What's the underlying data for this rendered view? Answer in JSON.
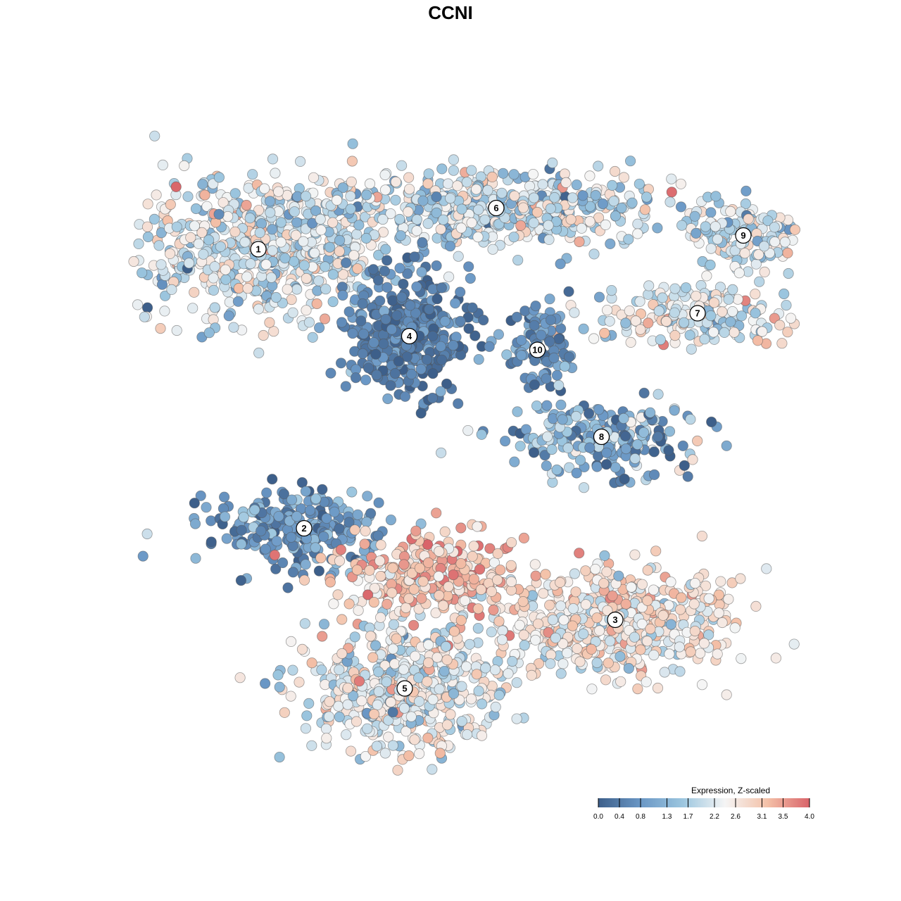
{
  "chart_data": {
    "type": "scatter",
    "title": "CCNI",
    "xlabel": "",
    "ylabel": "",
    "grid": false,
    "color_scale": {
      "title": "Expression, Z-scaled",
      "min": 0.0,
      "max": 4.0,
      "ticks": [
        "0.0",
        "0.4",
        "0.8",
        "1.3",
        "1.7",
        "2.2",
        "2.6",
        "3.1",
        "3.5",
        "4.0"
      ],
      "colors": [
        "#3d5f8a",
        "#6a97c5",
        "#9cc6df",
        "#f5f5f5",
        "#f4c1a8",
        "#d9646a"
      ],
      "placement": "bottom-right"
    },
    "clusters": [
      {
        "label": "1",
        "x": -4.2,
        "y": 4.4,
        "sx": 2.0,
        "sy": 1.1,
        "n": 620,
        "mean": 2.1,
        "sd": 0.55
      },
      {
        "label": "6",
        "x": 1.0,
        "y": 5.3,
        "sx": 2.6,
        "sy": 0.55,
        "n": 520,
        "mean": 2.0,
        "sd": 0.6
      },
      {
        "label": "9",
        "x": 6.4,
        "y": 4.7,
        "sx": 0.9,
        "sy": 0.45,
        "n": 130,
        "mean": 2.0,
        "sd": 0.6
      },
      {
        "label": "7",
        "x": 5.4,
        "y": 3.0,
        "sx": 1.6,
        "sy": 0.45,
        "n": 200,
        "mean": 2.2,
        "sd": 0.55
      },
      {
        "label": "4",
        "x": -0.9,
        "y": 2.5,
        "sx": 0.9,
        "sy": 0.9,
        "n": 420,
        "mean": 0.45,
        "sd": 0.35
      },
      {
        "label": "10",
        "x": 1.9,
        "y": 2.2,
        "sx": 0.5,
        "sy": 0.6,
        "n": 90,
        "mean": 0.7,
        "sd": 0.45
      },
      {
        "label": "8",
        "x": 3.3,
        "y": 0.3,
        "sx": 1.4,
        "sy": 0.5,
        "n": 220,
        "mean": 1.1,
        "sd": 0.7
      },
      {
        "label": "2",
        "x": -3.2,
        "y": -1.7,
        "sx": 1.3,
        "sy": 0.55,
        "n": 240,
        "mean": 0.7,
        "sd": 0.5
      },
      {
        "label": "3",
        "x": 3.6,
        "y": -3.7,
        "sx": 1.7,
        "sy": 0.8,
        "n": 520,
        "mean": 2.6,
        "sd": 0.45
      },
      {
        "label": "5",
        "x": -1.0,
        "y": -5.2,
        "sx": 1.5,
        "sy": 1.0,
        "n": 520,
        "mean": 2.3,
        "sd": 0.55
      }
    ],
    "hotspot": {
      "x": -0.5,
      "y": -2.7,
      "sx": 1.3,
      "sy": 0.6,
      "n": 280,
      "mean": 3.1,
      "sd": 0.5
    }
  }
}
